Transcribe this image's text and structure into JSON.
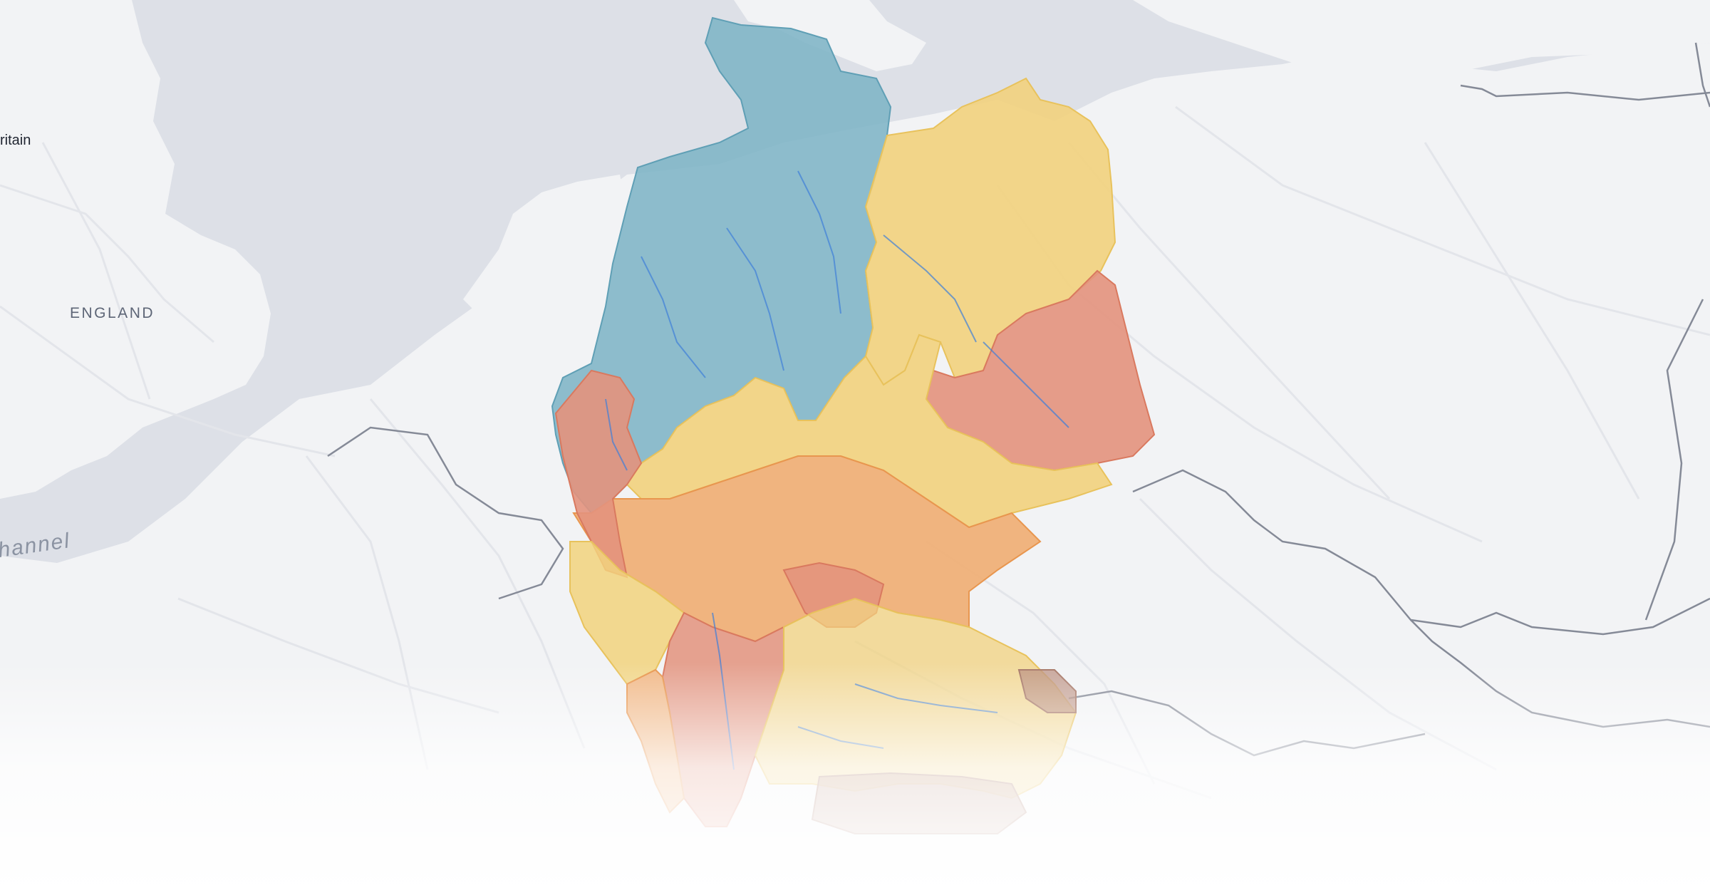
{
  "map": {
    "labels": {
      "britain": "ritain",
      "england": "ENGLAND",
      "channel": "hannel"
    },
    "colors": {
      "sea": "#dde0e7",
      "land": "#f2f3f5",
      "border": "#8a8f9c",
      "road": "#e4e6ea",
      "river": "#3f7fd8",
      "region_blue": "#7eb4c6",
      "region_yellow": "#f2d27d",
      "region_orange": "#f0ad72",
      "region_red": "#e3927d",
      "region_brown": "#b98d7e"
    },
    "region_categories": [
      "blue",
      "yellow",
      "orange",
      "red",
      "brown"
    ]
  }
}
